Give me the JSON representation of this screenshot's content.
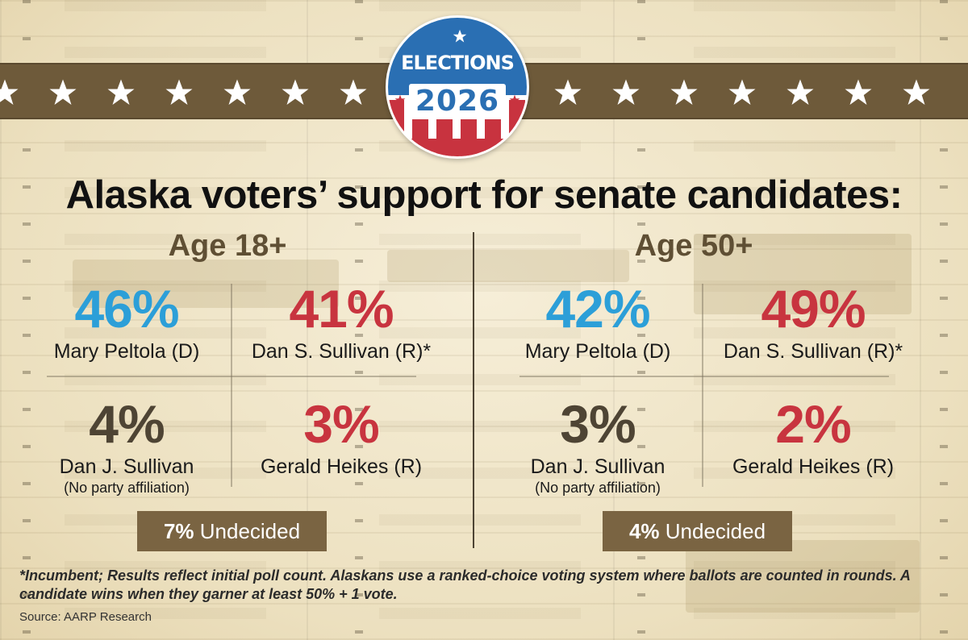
{
  "badge": {
    "label": "ELECTIONS",
    "year": "2026",
    "colors": {
      "blue": "#2a6fb3",
      "red": "#c8333f",
      "white": "#ffffff"
    }
  },
  "headline": {
    "regular": "Alaska voters’",
    "bold": "support for senate candidates:"
  },
  "panels": [
    {
      "age_label": "Age 18+",
      "candidates": [
        {
          "percent": "46%",
          "name": "Mary Peltola (D)",
          "note": "",
          "party": "dem"
        },
        {
          "percent": "41%",
          "name": "Dan S. Sullivan (R)*",
          "note": "",
          "party": "rep"
        },
        {
          "percent": "4%",
          "name": "Dan J. Sullivan",
          "note": "(No party affiliation)",
          "party": "np"
        },
        {
          "percent": "3%",
          "name": "Gerald Heikes (R)",
          "note": "",
          "party": "rep"
        }
      ],
      "undecided_percent": "7%",
      "undecided_label": "Undecided"
    },
    {
      "age_label": "Age 50+",
      "candidates": [
        {
          "percent": "42%",
          "name": "Mary Peltola (D)",
          "note": "",
          "party": "dem"
        },
        {
          "percent": "49%",
          "name": "Dan S. Sullivan (R)*",
          "note": "",
          "party": "rep"
        },
        {
          "percent": "3%",
          "name": "Dan J. Sullivan",
          "note": "(No party affiliation)",
          "party": "np"
        },
        {
          "percent": "2%",
          "name": "Gerald Heikes (R)",
          "note": "",
          "party": "rep"
        }
      ],
      "undecided_percent": "4%",
      "undecided_label": "Undecided"
    }
  ],
  "footnote": "*Incumbent; Results reflect initial poll count. Alaskans use a ranked-choice voting system where ballots are counted in rounds. A candidate wins when they garner at least 50% + 1 vote.",
  "source": "Source: AARP Research",
  "colors": {
    "democrat": "#2c9fd8",
    "republican": "#c8343f",
    "no_party": "#4e4434",
    "banner": "#6e5a3a",
    "undecided_box": "#7a6442",
    "age_heading": "#5f4f34"
  }
}
